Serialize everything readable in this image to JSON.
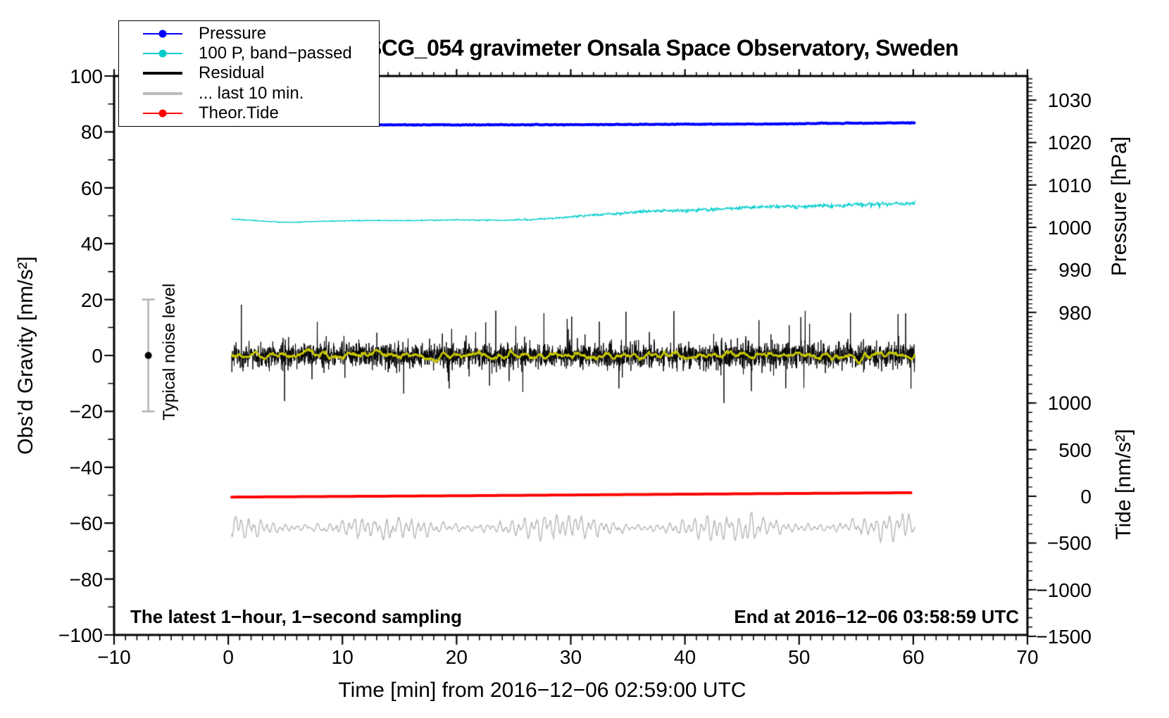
{
  "chart_data": {
    "type": "line",
    "title": "SCG_054 gravimeter Onsala Space Observatory, Sweden",
    "x": {
      "label": "Time [min] from 2016−12−06 02:59:00 UTC",
      "min": -10,
      "max": 70,
      "major_ticks": [
        -10,
        0,
        10,
        20,
        30,
        40,
        50,
        60,
        70
      ],
      "minor_step": 1
    },
    "y_left": {
      "label": "Obs’d Gravity [nm/s²]",
      "min": -100,
      "max": 100,
      "major_ticks": [
        -100,
        -80,
        -60,
        -40,
        -20,
        0,
        20,
        40,
        60,
        80,
        100
      ],
      "minor_step": 10
    },
    "y_right_pressure": {
      "label": "Pressure [hPa]",
      "ticks": [
        1030,
        1020,
        1010,
        1000,
        990,
        980
      ],
      "anchor_value": 1030,
      "anchor_left_units": 91.4,
      "left_units_per_unit": 1.519,
      "minor_step": 1,
      "minor_range": [
        970,
        1035
      ]
    },
    "y_right_tide": {
      "label": "Tide [nm/s²]",
      "ticks": [
        1000,
        500,
        0,
        -500,
        -1000,
        -1500
      ],
      "anchor_value": 0,
      "anchor_left_units": -50.4,
      "left_units_per_unit": 0.0334,
      "minor_step": 100,
      "minor_range": [
        -1500,
        1450
      ]
    },
    "time_range_data_min": [
      0.3,
      60.15
    ],
    "grid": false,
    "series": [
      {
        "name": "Pressure",
        "axis": "pressure",
        "color": "#0000ff",
        "width": 4,
        "type": "line",
        "dt": 0.1,
        "noise": 0.04,
        "seed": 11,
        "keypoints": [
          [
            0.3,
            1024.1
          ],
          [
            10,
            1024.15
          ],
          [
            20,
            1024.15
          ],
          [
            30,
            1024.2
          ],
          [
            40,
            1024.3
          ],
          [
            47,
            1024.35
          ],
          [
            52,
            1024.5
          ],
          [
            56,
            1024.55
          ],
          [
            60.15,
            1024.65
          ]
        ]
      },
      {
        "name": "100 P, band−passed",
        "axis": "left",
        "color": "#00cccc",
        "width": 1.3,
        "type": "line",
        "dt": 0.05,
        "seed": 22,
        "noise_keypoints": [
          [
            0.3,
            0.07
          ],
          [
            25,
            0.12
          ],
          [
            30,
            0.2
          ],
          [
            33,
            0.3
          ],
          [
            40,
            0.32
          ],
          [
            45,
            0.35
          ],
          [
            60.15,
            0.45
          ]
        ],
        "keypoints": [
          [
            0.3,
            48.8
          ],
          [
            2,
            48.4
          ],
          [
            5,
            47.6
          ],
          [
            8,
            48.0
          ],
          [
            12,
            48.3
          ],
          [
            16,
            48.3
          ],
          [
            20,
            48.5
          ],
          [
            24,
            48.4
          ],
          [
            27,
            48.7
          ],
          [
            30,
            49.6
          ],
          [
            33,
            50.6
          ],
          [
            36,
            51.4
          ],
          [
            38,
            51.7
          ],
          [
            40,
            51.9
          ],
          [
            42,
            52.1
          ],
          [
            44,
            52.6
          ],
          [
            46,
            53.1
          ],
          [
            49,
            53.3
          ],
          [
            52,
            53.5
          ],
          [
            55,
            53.9
          ],
          [
            58,
            54.3
          ],
          [
            60.15,
            54.5
          ]
        ]
      },
      {
        "name": "Residual",
        "axis": "left",
        "color": "#000000",
        "width": 1,
        "type": "noise_band",
        "dt": 0.0166667,
        "seed": 33,
        "center": 0,
        "sigma": 2.2,
        "spike_prob": 0.015,
        "spike_min": 5,
        "spike_max": 15
      },
      {
        "name": "Residual smoothed",
        "axis": "left",
        "color": "#c8c800",
        "width": 2.6,
        "type": "smooth",
        "dt": 0.04,
        "seed": 44,
        "center": -0.15,
        "amp": 1.0
      },
      {
        "name": "Theor.Tide",
        "axis": "tide",
        "color": "#ff0000",
        "width": 4,
        "type": "line",
        "dt": 0.5,
        "noise": 0,
        "seed": 55,
        "keypoints": [
          [
            0.3,
            -8
          ],
          [
            20,
            6
          ],
          [
            40,
            23
          ],
          [
            50,
            31
          ],
          [
            60.15,
            39
          ]
        ]
      },
      {
        "name": "... last 10 min.",
        "axis": "left",
        "color": "#b9b9b9",
        "width": 1.5,
        "type": "osc",
        "dt": 0.04,
        "seed": 66,
        "center": -61.6,
        "base_amp": 2.0,
        "amp_mod": 1.2
      }
    ],
    "noise_marker": {
      "x_min": -7,
      "center": 0,
      "half_range": 20,
      "color": "#b3b3b3",
      "dot_color": "#000000"
    }
  },
  "legend": {
    "items": [
      {
        "label": "Pressure",
        "color": "#0000ff",
        "marker": true,
        "thickness": 2
      },
      {
        "label": "100 P, band−passed",
        "color": "#00cccc",
        "marker": true,
        "thickness": 2
      },
      {
        "label": "Residual",
        "color": "#000000",
        "marker": false,
        "thickness": 4
      },
      {
        "label": "... last 10 min.",
        "color": "#bbbbbb",
        "marker": false,
        "thickness": 4
      },
      {
        "label": "Theor.Tide",
        "color": "#ff0000",
        "marker": true,
        "thickness": 2
      }
    ]
  },
  "annotations": {
    "sampling": "The latest 1−hour, 1−second sampling",
    "end": "End at 2016−12−06 03:58:59 UTC",
    "noise_label": "Typical noise level"
  }
}
